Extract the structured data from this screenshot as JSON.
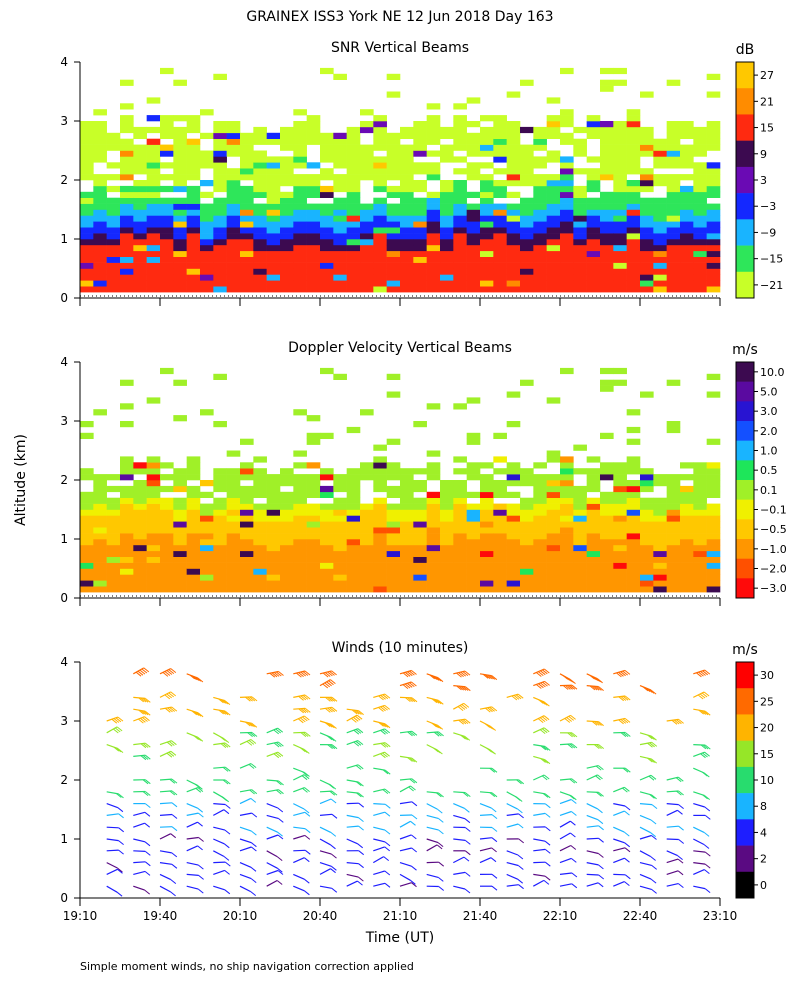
{
  "page": {
    "title": "GRAINEX ISS3 York NE  12 Jun 2018 Day 163",
    "ylabel": "Altitude (km)",
    "xlabel": "Time (UT)",
    "footnote": "Simple moment winds, no ship navigation correction applied"
  },
  "chart_data": [
    {
      "type": "heatmap",
      "title": "SNR Vertical Beams",
      "colorbar_unit": "dB",
      "colorbar_ticks": [
        "27",
        "21",
        "15",
        "9",
        "3",
        "−3",
        "−9",
        "−15",
        "−21"
      ],
      "colorbar_colors": [
        "#ffc800",
        "#ff8c00",
        "#ff2a10",
        "#3c0a50",
        "#6a0ab4",
        "#1428ff",
        "#19b4ff",
        "#2ee65a",
        "#c8ff28"
      ],
      "ylim": [
        0,
        4
      ],
      "yticks": [
        "0",
        "1",
        "2",
        "3",
        "4"
      ],
      "xlim": [
        "19:10",
        "23:10"
      ],
      "data_top_km": 4.0,
      "layers": [
        {
          "level": "-21",
          "color": "#c8ff28",
          "top_km": 3.0
        },
        {
          "level": "-15",
          "color": "#2ee65a",
          "top_km": 1.9
        },
        {
          "level": "-9",
          "color": "#19b4ff",
          "top_km": 1.5
        },
        {
          "level": "-3",
          "color": "#1428ff",
          "top_km": 1.3
        },
        {
          "level": "9",
          "color": "#3c0a50",
          "top_km": 1.1
        },
        {
          "level": "15",
          "color": "#ff2a10",
          "top_km": 0.95
        }
      ]
    },
    {
      "type": "heatmap",
      "title": "Doppler Velocity Vertical Beams",
      "colorbar_unit": "m/s",
      "colorbar_ticks": [
        "10.0",
        "5.0",
        "3.0",
        "2.0",
        "1.0",
        "0.5",
        "0.1",
        "−0.1",
        "−0.5",
        "−1.0",
        "−2.0",
        "−3.0"
      ],
      "colorbar_colors": [
        "#3c0a50",
        "#5a0aa0",
        "#2814d2",
        "#1450ff",
        "#19b4ff",
        "#1ee65a",
        "#a0f028",
        "#f0f000",
        "#ffc800",
        "#ff9600",
        "#ff5000",
        "#ff0a0a"
      ],
      "ylim": [
        0,
        4
      ],
      "yticks": [
        "0",
        "1",
        "2",
        "3",
        "4"
      ],
      "xlim": [
        "19:10",
        "23:10"
      ],
      "layers": [
        {
          "level": "0.1",
          "color": "#a0f028",
          "top_km": 2.3
        },
        {
          "level": "-0.1",
          "color": "#f0f000",
          "top_km": 1.6
        },
        {
          "level": "-0.5",
          "color": "#ffc800",
          "top_km": 1.45
        },
        {
          "level": "-1.0",
          "color": "#ff9600",
          "top_km": 1.0
        }
      ]
    },
    {
      "type": "scatter",
      "title": "Winds (10 minutes)",
      "colorbar_unit": "m/s",
      "colorbar_ticks": [
        "30",
        "25",
        "20",
        "15",
        "10",
        "8",
        "4",
        "2",
        "0"
      ],
      "colorbar_colors": [
        "#ff0000",
        "#ff6a00",
        "#ffb400",
        "#96e628",
        "#28dc6e",
        "#19b4ff",
        "#1e1eff",
        "#5a0a82",
        "#000000"
      ],
      "ylim": [
        0,
        4
      ],
      "yticks": [
        "0",
        "1",
        "2",
        "3",
        "4"
      ],
      "xlim": [
        "19:10",
        "23:10"
      ],
      "xticks": [
        "19:10",
        "19:40",
        "20:10",
        "20:40",
        "21:10",
        "21:40",
        "22:10",
        "22:40",
        "23:10"
      ],
      "profile_times": [
        "19:20",
        "19:30",
        "19:40",
        "19:50",
        "20:00",
        "20:10",
        "20:20",
        "20:30",
        "20:40",
        "20:50",
        "21:00",
        "21:10",
        "21:20",
        "21:30",
        "21:40",
        "21:50",
        "22:00",
        "22:10",
        "22:20",
        "22:30",
        "22:40",
        "22:50",
        "23:00"
      ],
      "barb_heights_km": [
        0.2,
        0.4,
        0.6,
        0.8,
        1.0,
        1.2,
        1.4,
        1.6,
        1.8,
        2.0,
        2.2,
        2.4,
        2.6,
        2.8,
        3.0,
        3.2,
        3.4,
        3.6,
        3.8
      ],
      "speed_by_height_ms": [
        {
          "max_km": 1.0,
          "speed": 3
        },
        {
          "max_km": 1.6,
          "speed": 6
        },
        {
          "max_km": 2.2,
          "speed": 10
        },
        {
          "max_km": 2.8,
          "speed": 14
        },
        {
          "max_km": 3.4,
          "speed": 20
        },
        {
          "max_km": 4.0,
          "speed": 25
        }
      ]
    }
  ]
}
